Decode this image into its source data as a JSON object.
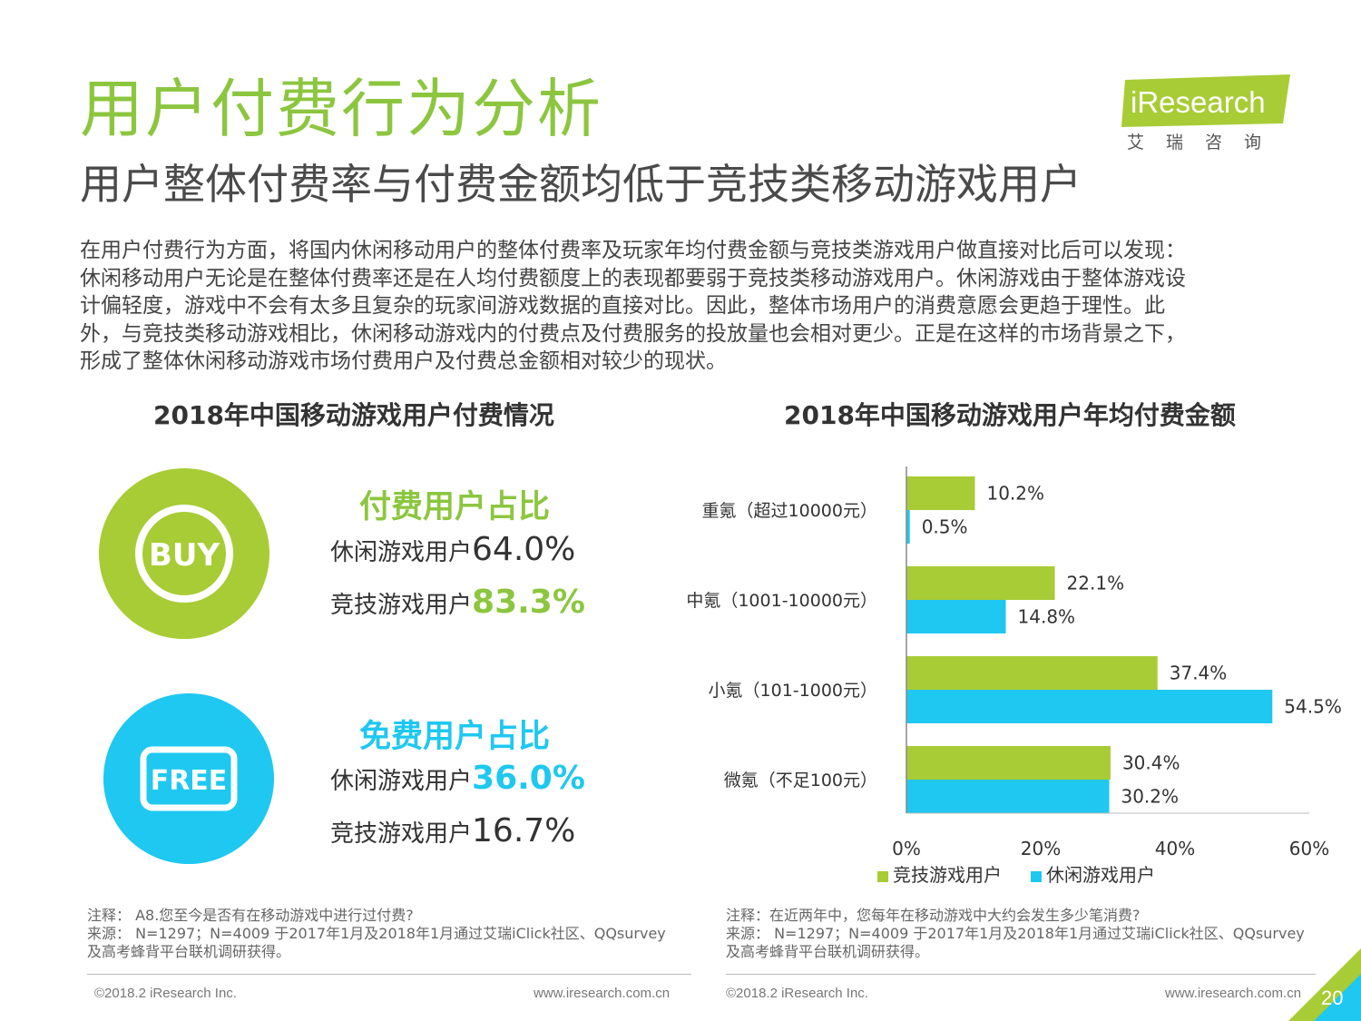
{
  "header": {
    "title": "用户付费行为分析",
    "subtitle": "用户整体付费率与付费金额均低于竞技类移动游戏用户",
    "logo_text": "iResearch",
    "logo_sub": "艾瑞咨询"
  },
  "intro_lines": [
    "在用户付费行为方面，将国内休闲移动用户的整体付费率及玩家年均付费金额与竞技类游戏用户做直接对比后可以发现：",
    "休闲移动用户无论是在整体付费率还是在人均付费额度上的表现都要弱于竞技类移动游戏用户。休闲游戏由于整体游戏设",
    "计偏轻度，游戏中不会有太多且复杂的玩家间游戏数据的直接对比。因此，整体市场用户的消费意愿会更趋于理性。此",
    "外，与竞技类移动游戏相比，休闲移动游戏内的付费点及付费服务的投放量也会相对更少。正是在这样的市场背景之下，",
    "形成了整体休闲移动游戏市场付费用户及付费总金额相对较少的现状。"
  ],
  "left_panel": {
    "title": "2018年中国移动游戏用户付费情况",
    "buy_icon": "BUY",
    "free_icon": "FREE",
    "paid": {
      "heading": "付费用户占比",
      "rows": [
        {
          "label": "休闲游戏用户",
          "value": "64.0%"
        },
        {
          "label": "竞技游戏用户",
          "value": "83.3%"
        }
      ]
    },
    "free": {
      "heading": "免费用户占比",
      "rows": [
        {
          "label": "休闲游戏用户",
          "value": "36.0%"
        },
        {
          "label": "竞技游戏用户",
          "value": "16.7%"
        }
      ]
    }
  },
  "colors": {
    "green": "#a8cc35",
    "blue": "#1ec8f0",
    "title_green": "#8cc63f"
  },
  "chart_data": {
    "type": "bar",
    "orientation": "horizontal",
    "title": "2018年中国移动游戏用户年均付费金额",
    "categories": [
      "重氪（超过10000元）",
      "中氪（1001-10000元）",
      "小氪（101-1000元）",
      "微氪（不足100元）"
    ],
    "series": [
      {
        "name": "竞技游戏用户",
        "values": [
          10.2,
          22.1,
          37.4,
          30.4
        ]
      },
      {
        "name": "休闲游戏用户",
        "values": [
          0.5,
          14.8,
          54.5,
          30.2
        ]
      }
    ],
    "value_labels": [
      [
        "10.2%",
        "22.1%",
        "37.4%",
        "30.4%"
      ],
      [
        "0.5%",
        "14.8%",
        "54.5%",
        "30.2%"
      ]
    ],
    "xlim": [
      0,
      60
    ],
    "xticks": [
      0,
      20,
      40,
      60
    ],
    "xtick_labels": [
      "0%",
      "20%",
      "40%",
      "60%"
    ],
    "grid": false,
    "legend_position": "bottom"
  },
  "notes": {
    "left": [
      "注释：  A8.您至今是否有在移动游戏中进行过付费?",
      "来源：  N=1297；N=4009 于2017年1月及2018年1月通过艾瑞iClick社区、QQsurvey",
      "及高考蜂背平台联机调研获得。"
    ],
    "right": [
      "注释：在近两年中，您每年在移动游戏中大约会发生多少笔消费?",
      "来源：  N=1297；N=4009 于2017年1月及2018年1月通过艾瑞iClick社区、QQsurvey",
      "及高考蜂背平台联机调研获得。"
    ]
  },
  "footer": {
    "copyright": "©2018.2 iResearch Inc.",
    "url": "www.iresearch.com.cn",
    "page": "20"
  }
}
